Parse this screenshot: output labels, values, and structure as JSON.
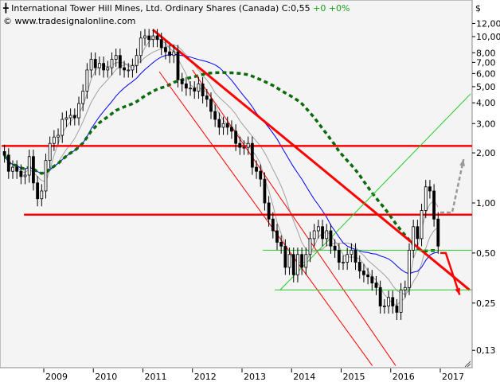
{
  "header": {
    "symbol_icon": "candlestick-icon",
    "title": "International Tower Hill Mines, Ltd. Ordinary Shares (Canada)",
    "last": "C:0,55",
    "change": "+0 +0%",
    "copyright": "© www.tradesignalonline.com"
  },
  "chart_data": {
    "type": "candlestick",
    "title": "International Tower Hill Mines, Ltd. Ordinary Shares (Canada)",
    "currency_label": "$",
    "y_scale": "log",
    "ylim": [
      0.115,
      13.5
    ],
    "xlim": [
      "2008-03",
      "2017-08"
    ],
    "y_ticks": [
      "12,00",
      "10,00",
      "8,00",
      "7,00",
      "6,00",
      "5,00",
      "4,00",
      "3,00",
      "2,00",
      "1,00",
      "0,50",
      "0,25",
      "0,13"
    ],
    "y_tick_values": [
      12,
      10,
      8,
      7,
      6,
      5,
      4,
      3,
      2,
      1,
      0.5,
      0.25,
      0.13
    ],
    "x_ticks": [
      "2009",
      "2010",
      "2011",
      "2012",
      "2013",
      "2014",
      "2015",
      "2016",
      "2017"
    ],
    "period": "monthly",
    "start": "2008-03",
    "close": [
      1.94,
      1.55,
      1.64,
      1.55,
      1.44,
      1.47,
      1.9,
      1.32,
      1.06,
      1.18,
      1.8,
      2.28,
      2.49,
      2.55,
      3.18,
      3.25,
      3.36,
      3.25,
      3.96,
      4.7,
      6.3,
      7.3,
      6.5,
      6.9,
      6.3,
      6.5,
      7.3,
      7.7,
      6.5,
      6.3,
      6.3,
      6.7,
      7.7,
      9.8,
      10.1,
      9.6,
      10.1,
      9.6,
      8.6,
      8.1,
      7.7,
      8.1,
      5.5,
      5.2,
      4.9,
      4.9,
      4.7,
      5.2,
      4.4,
      4.2,
      3.55,
      3.18,
      2.85,
      3.0,
      2.85,
      2.7,
      2.28,
      2.16,
      2.16,
      2.28,
      1.64,
      1.55,
      1.39,
      1.0,
      0.8,
      0.68,
      0.58,
      0.55,
      0.41,
      0.49,
      0.37,
      0.49,
      0.41,
      0.49,
      0.61,
      0.68,
      0.72,
      0.61,
      0.68,
      0.55,
      0.52,
      0.44,
      0.44,
      0.49,
      0.52,
      0.44,
      0.39,
      0.37,
      0.36,
      0.33,
      0.31,
      0.24,
      0.24,
      0.27,
      0.24,
      0.22,
      0.3,
      0.31,
      0.52,
      0.72,
      0.61,
      0.9,
      1.25,
      1.18,
      0.8,
      0.55
    ],
    "moving_averages": [
      {
        "color": "#a0a0a0",
        "style": "solid"
      },
      {
        "color": "#a0a0a0",
        "style": "solid"
      },
      {
        "color": "#0000ff",
        "style": "solid"
      },
      {
        "color": "#0a6b0a",
        "style": "dotted"
      }
    ],
    "annotations": {
      "horizontal_red": [
        {
          "price": 2.2,
          "from": 2008.15
        },
        {
          "price": 0.85,
          "from": 2008.6
        }
      ],
      "downtrend_thick": {
        "from": [
          2011.2,
          11.0
        ],
        "to": [
          2017.59,
          0.3
        ]
      },
      "channel_thin": [
        {
          "from": [
            2011.33,
            6.15
          ],
          "to": [
            2015.63,
            0.105
          ]
        },
        {
          "from": [
            2012.0,
            6.3
          ],
          "to": [
            2016.1,
            0.105
          ]
        }
      ],
      "horizontal_green": [
        {
          "price": 0.52,
          "from": 2013.42
        },
        {
          "price": 0.3,
          "from": 2013.66
        }
      ],
      "diagonal_green": {
        "from": [
          2013.77,
          0.3
        ],
        "to": [
          2017.61,
          4.52
        ]
      },
      "arrow_up_gray": [
        [
          2017.0,
          0.876
        ],
        [
          2017.24,
          0.876
        ],
        [
          2017.47,
          1.83
        ]
      ],
      "arrow_down_red": [
        [
          2017.0,
          0.5
        ],
        [
          2017.11,
          0.5
        ],
        [
          2017.39,
          0.28
        ]
      ]
    },
    "colors": {
      "up": "#ffffff",
      "down": "#000000",
      "red": "#ff0000",
      "green": "#22cc22",
      "background": "#f4f4f4"
    }
  }
}
